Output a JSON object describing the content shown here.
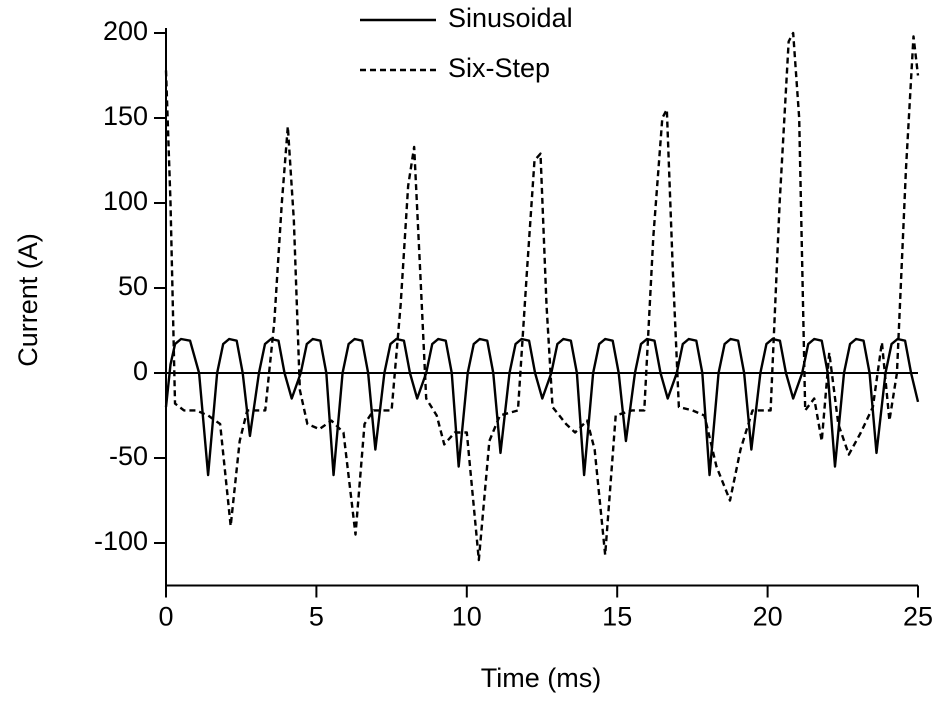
{
  "chart_data": {
    "type": "line",
    "x_label": "Time (ms)",
    "y_label": "Current (A)",
    "xlim": [
      0,
      25
    ],
    "xticks": [
      0,
      5,
      10,
      15,
      20,
      25
    ],
    "ylim": [
      -125,
      200
    ],
    "yticks": [
      -100,
      -50,
      0,
      50,
      100,
      150,
      200
    ],
    "legend": "upper center",
    "zero_line": true,
    "series": [
      {
        "name": "Sinusoidal",
        "color": "#000000",
        "style": "solid",
        "x": [
          0,
          0.15,
          0.3,
          0.5,
          0.8,
          1.1,
          1.4,
          1.7,
          1.9,
          2.1,
          2.35,
          2.55,
          2.79,
          3.09,
          3.29,
          3.49,
          3.74,
          3.94,
          4.18,
          4.48,
          4.68,
          4.88,
          5.13,
          5.33,
          5.57,
          5.87,
          6.07,
          6.27,
          6.52,
          6.72,
          6.96,
          7.26,
          7.46,
          7.66,
          7.91,
          8.11,
          8.35,
          8.65,
          8.85,
          9.05,
          9.3,
          9.5,
          9.73,
          10.03,
          10.23,
          10.43,
          10.68,
          10.88,
          11.12,
          11.42,
          11.62,
          11.82,
          12.07,
          12.27,
          12.51,
          12.81,
          13.01,
          13.21,
          13.46,
          13.66,
          13.9,
          14.2,
          14.4,
          14.6,
          14.85,
          15.05,
          15.29,
          15.59,
          15.79,
          15.99,
          16.24,
          16.44,
          16.68,
          16.98,
          17.18,
          17.38,
          17.63,
          17.83,
          18.07,
          18.37,
          18.57,
          18.77,
          19.02,
          19.22,
          19.46,
          19.76,
          19.96,
          20.16,
          20.41,
          20.61,
          20.85,
          21.15,
          21.35,
          21.55,
          21.8,
          22.0,
          22.24,
          22.54,
          22.74,
          22.94,
          23.19,
          23.39,
          23.62,
          23.92,
          24.12,
          24.32,
          24.57,
          24.77,
          25.0
        ],
        "values": [
          -20,
          5,
          17,
          20,
          19,
          0,
          -60,
          0,
          17,
          20,
          19,
          0,
          -37,
          0,
          17,
          20,
          19,
          0,
          -15,
          0,
          17,
          20,
          19,
          0,
          -60,
          0,
          17,
          20,
          19,
          0,
          -45,
          0,
          17,
          20,
          19,
          0,
          -15,
          0,
          17,
          20,
          19,
          0,
          -55,
          0,
          17,
          20,
          19,
          0,
          -47,
          0,
          17,
          20,
          19,
          0,
          -15,
          0,
          17,
          20,
          19,
          0,
          -60,
          0,
          17,
          20,
          19,
          0,
          -40,
          0,
          17,
          20,
          19,
          0,
          -15,
          0,
          17,
          20,
          19,
          0,
          -60,
          0,
          17,
          20,
          19,
          0,
          -45,
          0,
          17,
          20,
          19,
          0,
          -15,
          0,
          17,
          20,
          19,
          0,
          -55,
          0,
          17,
          20,
          19,
          0,
          -47,
          0,
          17,
          20,
          19,
          0,
          -17
        ]
      },
      {
        "name": "Six-Step",
        "color": "#000000",
        "style": "dashed",
        "x": [
          0,
          0.15,
          0.3,
          0.6,
          1.0,
          1.4,
          1.8,
          2.15,
          2.45,
          2.7,
          3.3,
          3.6,
          3.85,
          4.05,
          4.25,
          4.45,
          4.7,
          5.1,
          5.5,
          5.9,
          6.3,
          6.6,
          6.9,
          7.5,
          7.8,
          8.05,
          8.25,
          8.45,
          8.65,
          9.0,
          9.25,
          9.6,
          10.0,
          10.4,
          10.75,
          11.1,
          11.7,
          12.0,
          12.25,
          12.45,
          12.65,
          12.85,
          13.3,
          13.6,
          14.0,
          14.25,
          14.6,
          14.95,
          15.5,
          15.9,
          16.2,
          16.5,
          16.65,
          16.85,
          17.05,
          17.5,
          17.9,
          18.3,
          18.75,
          19.1,
          19.5,
          20.1,
          20.4,
          20.7,
          20.85,
          21.05,
          21.25,
          21.55,
          21.8,
          22.05,
          22.35,
          22.7,
          23.1,
          23.5,
          23.8,
          24.05,
          24.3,
          24.6,
          24.85,
          25.0
        ],
        "values": [
          178,
          100,
          -18,
          -22,
          -22,
          -25,
          -30,
          -90,
          -40,
          -22,
          -22,
          30,
          100,
          145,
          90,
          -10,
          -30,
          -33,
          -28,
          -35,
          -95,
          -30,
          -22,
          -22,
          40,
          110,
          133,
          60,
          -15,
          -25,
          -42,
          -35,
          -35,
          -110,
          -40,
          -25,
          -22,
          60,
          125,
          129,
          40,
          -20,
          -30,
          -35,
          -28,
          -45,
          -107,
          -25,
          -22,
          -22,
          80,
          150,
          155,
          60,
          -20,
          -22,
          -25,
          -55,
          -75,
          -45,
          -22,
          -22,
          100,
          195,
          200,
          150,
          -22,
          -15,
          -40,
          12,
          -30,
          -48,
          -35,
          -20,
          18,
          -28,
          0,
          120,
          198,
          175
        ]
      }
    ]
  }
}
